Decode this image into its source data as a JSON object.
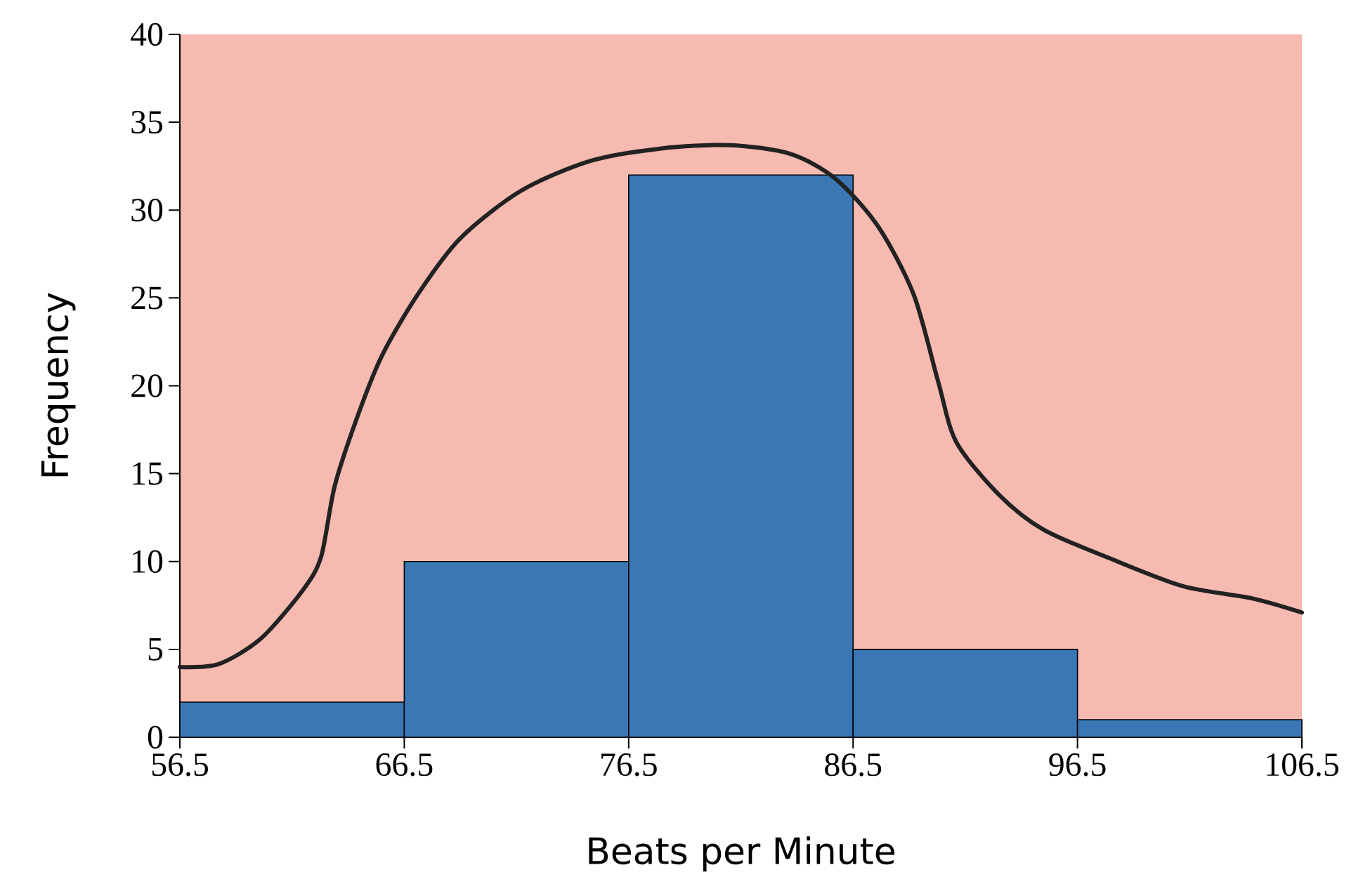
{
  "chart_data": {
    "type": "histogram",
    "xlabel": "Beats per Minute",
    "ylabel": "Frequency",
    "xlim": [
      56.5,
      106.5
    ],
    "ylim": [
      0,
      40
    ],
    "xticks": [
      56.5,
      66.5,
      76.5,
      86.5,
      96.5,
      106.5
    ],
    "yticks": [
      0,
      5,
      10,
      15,
      20,
      25,
      30,
      35,
      40
    ],
    "series": [
      {
        "color": "#3a78b5",
        "bins": [
          56.5,
          66.5,
          76.5,
          86.5,
          96.5,
          106.5
        ],
        "values": [
          2,
          10,
          32,
          5,
          1
        ]
      },
      {
        "type": "line",
        "color": "#222222",
        "x": [
          56.5,
          58.2,
          60.1,
          62.0,
          62.8,
          63.4,
          64.4,
          65.5,
          67.1,
          69.0,
          71.7,
          74.8,
          77.9,
          81.0,
          83.7,
          85.7,
          87.6,
          89.2,
          90.3,
          91.1,
          93.0,
          95.0,
          98.1,
          101.2,
          104.3,
          106.5
        ],
        "values": [
          4.0,
          4.15,
          5.6,
          8.4,
          10.3,
          14.3,
          18.2,
          21.7,
          25.2,
          28.4,
          31.1,
          32.8,
          33.5,
          33.7,
          33.2,
          31.8,
          29.1,
          25.2,
          20.2,
          16.8,
          13.8,
          11.8,
          10.1,
          8.6,
          7.9,
          7.1
        ]
      }
    ]
  }
}
